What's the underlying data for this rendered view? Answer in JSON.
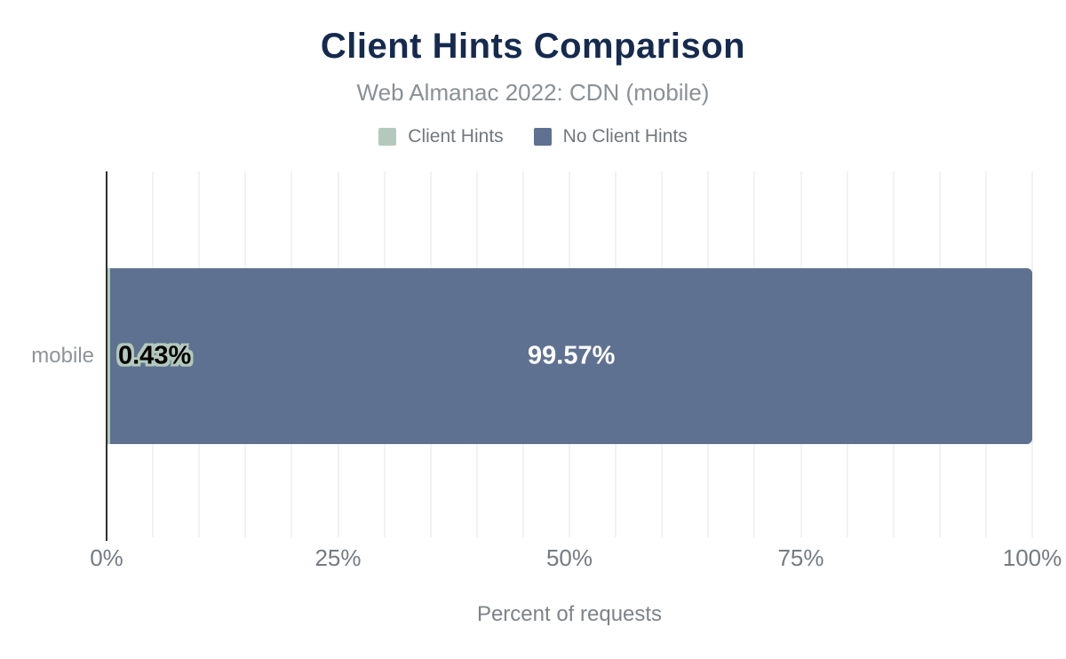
{
  "chart_data": {
    "type": "bar",
    "orientation": "horizontal",
    "stacked": true,
    "title": "Client Hints Comparison",
    "subtitle": "Web Almanac 2022: CDN (mobile)",
    "categories": [
      "mobile"
    ],
    "series": [
      {
        "name": "Client Hints",
        "values": [
          0.43
        ],
        "color": "#b4c9bd",
        "data_labels": [
          "0.43%"
        ],
        "label_style": "outlined-black-on-light"
      },
      {
        "name": "No Client Hints",
        "values": [
          99.57
        ],
        "color": "#5e7190",
        "data_labels": [
          "99.57%"
        ],
        "label_style": "white-on-dark"
      }
    ],
    "xlabel": "Percent of requests",
    "xlim": [
      0,
      100
    ],
    "x_ticks": [
      {
        "value": 0,
        "label": "0%"
      },
      {
        "value": 25,
        "label": "25%"
      },
      {
        "value": 50,
        "label": "50%"
      },
      {
        "value": 75,
        "label": "75%"
      },
      {
        "value": 100,
        "label": "100%"
      }
    ],
    "minor_grid_step": 5,
    "grid": true,
    "legend_position": "top"
  },
  "colors": {
    "title": "#152a4e",
    "subtitle": "#8a9095",
    "legend_text": "#73787d",
    "axis_line": "#2f2f2f",
    "gridline": "#f2f2f2",
    "tick_label": "#757b81",
    "category_label": "#8f9499",
    "axis_title": "#7d838a",
    "series_client_hints": "#b4c9bd",
    "series_no_client_hints": "#5e7190",
    "bar_label_light": "#ffffff",
    "bar_label_dark": "#000000"
  }
}
